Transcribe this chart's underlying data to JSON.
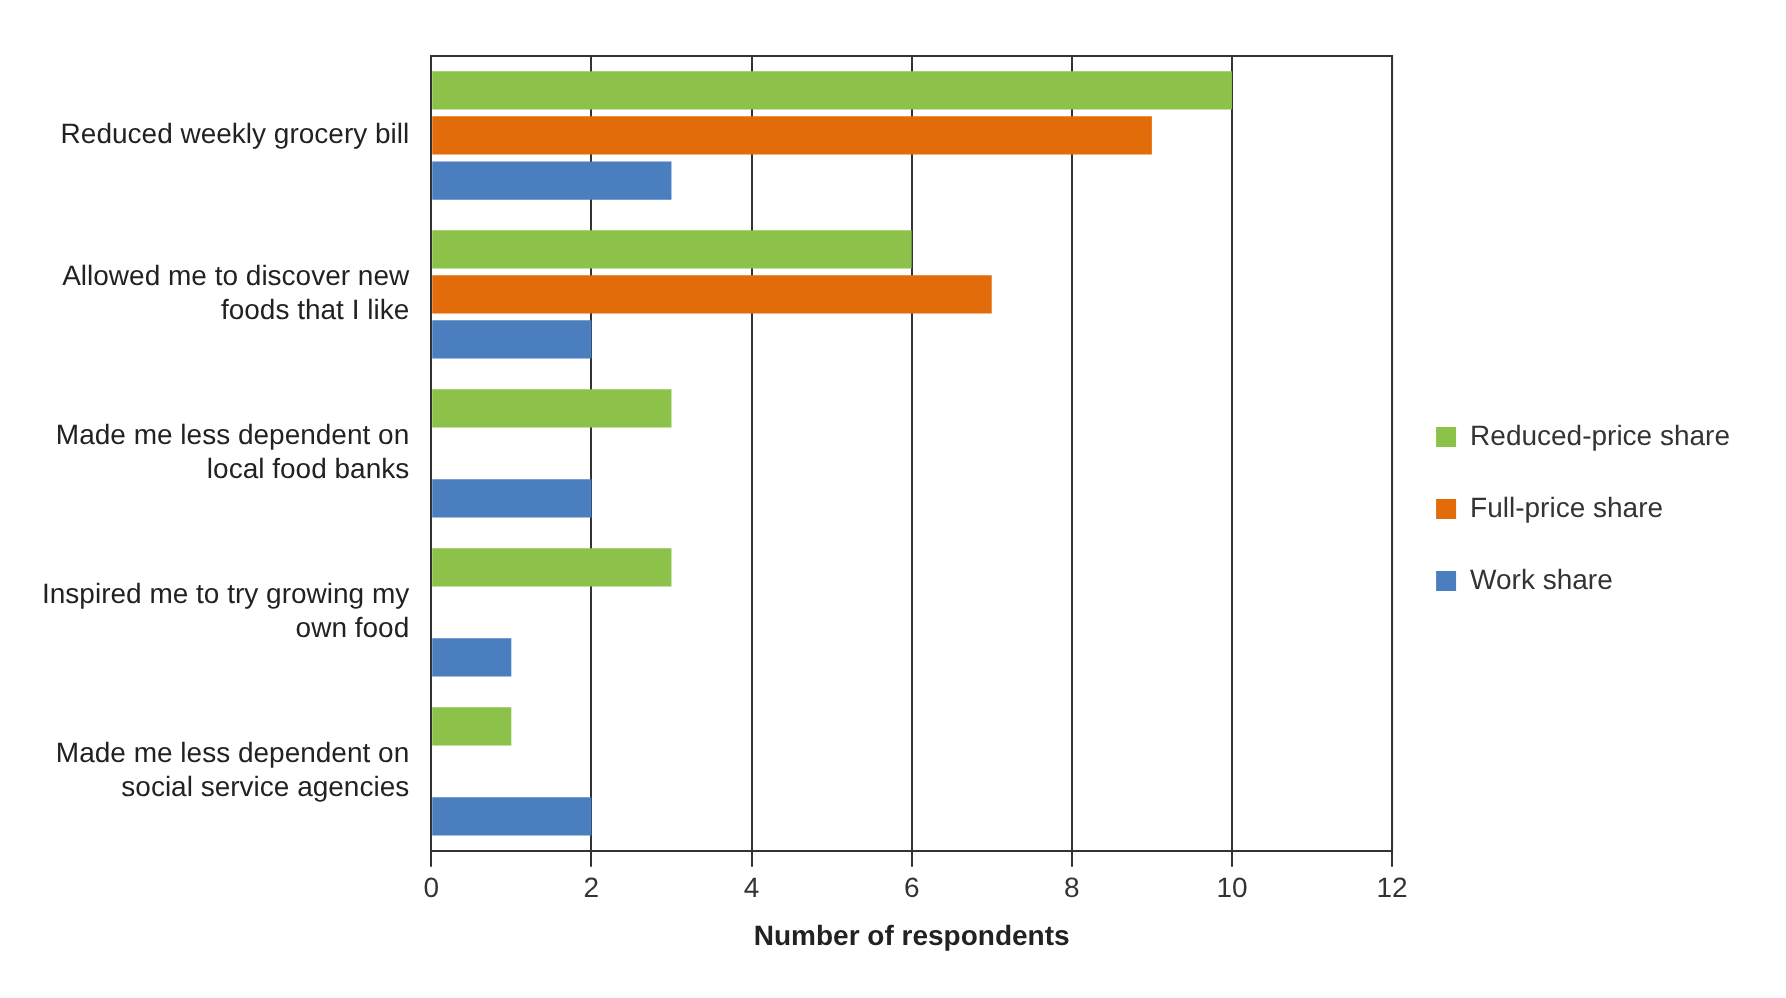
{
  "chart_data": {
    "type": "bar",
    "orientation": "horizontal",
    "xlabel": "Number of respondents",
    "categories": [
      "Reduced weekly grocery bill",
      "Allowed me to discover new foods that I like",
      "Made me less dependent on local food banks",
      "Inspired me to try growing my own food",
      "Made me less dependent on social service agencies"
    ],
    "series": [
      {
        "name": "Reduced-price share",
        "color": "#8cc24a",
        "values": [
          10,
          6,
          3,
          3,
          1
        ]
      },
      {
        "name": "Full-price share",
        "color": "#e36c0a",
        "values": [
          9,
          7,
          null,
          null,
          null
        ]
      },
      {
        "name": "Work share",
        "color": "#4a7ebf",
        "values": [
          3,
          2,
          2,
          1,
          2
        ]
      }
    ],
    "xlim": [
      0,
      12
    ],
    "xticks": [
      0,
      2,
      4,
      6,
      8,
      10,
      12
    ],
    "grid": "x",
    "legend": "right"
  }
}
